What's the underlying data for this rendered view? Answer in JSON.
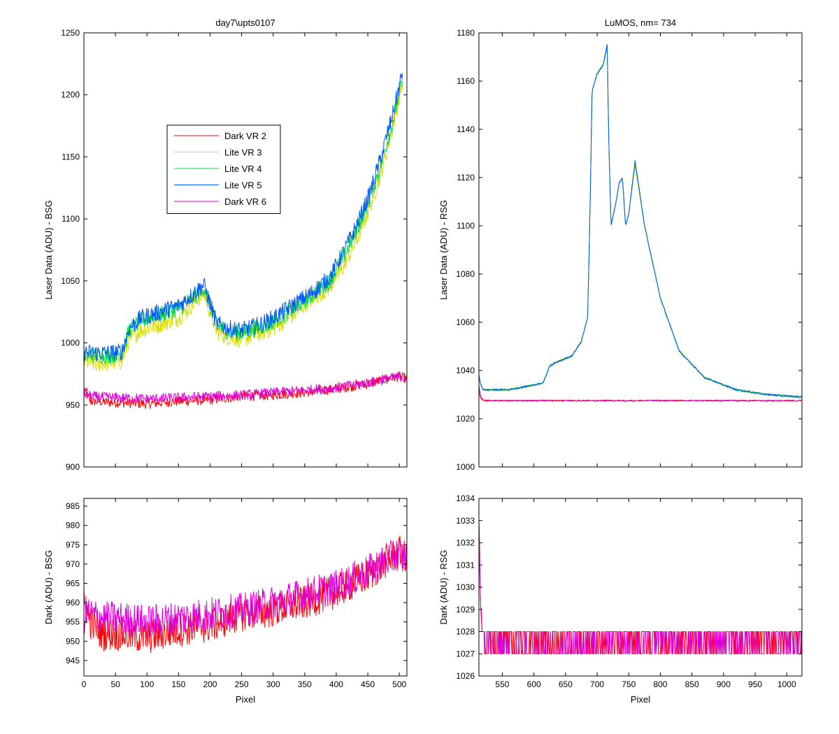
{
  "chart_data": [
    {
      "id": "tl",
      "type": "line",
      "title": "day7\\upts0107",
      "xlabel": "",
      "ylabel": "Laser Data (ADU) - BSG",
      "xlim": [
        0,
        512
      ],
      "ylim": [
        900,
        1250
      ],
      "xticks": [
        0,
        50,
        100,
        150,
        200,
        250,
        300,
        350,
        400,
        450,
        500
      ],
      "yticks": [
        900,
        950,
        1000,
        1050,
        1100,
        1150,
        1200,
        1250
      ],
      "show_xtick_labels": false,
      "legend": {
        "placement": "upper-left",
        "entries": [
          "Dark VR 2",
          "Lite VR 3",
          "Lite VR 4",
          "Lite VR 5",
          "Dark VR 6"
        ]
      },
      "series": [
        {
          "name": "Dark VR 2",
          "color": "#ff0000",
          "noise": 4,
          "x": [
            0,
            5,
            10,
            50,
            100,
            150,
            200,
            250,
            300,
            350,
            400,
            450,
            480,
            500,
            512
          ],
          "y": [
            962,
            958,
            953,
            952,
            951,
            953,
            954,
            957,
            958,
            960,
            963,
            967,
            971,
            973,
            971
          ]
        },
        {
          "name": "Lite VR 3",
          "color": "#dddd00",
          "noise": 7,
          "x": [
            0,
            20,
            40,
            60,
            72,
            90,
            120,
            150,
            170,
            190,
            200,
            210,
            225,
            250,
            280,
            300,
            330,
            360,
            390,
            410,
            430,
            450,
            470,
            490,
            505
          ],
          "y": [
            985,
            983,
            984,
            985,
            1003,
            1010,
            1015,
            1020,
            1030,
            1040,
            1025,
            1010,
            1005,
            1003,
            1008,
            1012,
            1022,
            1035,
            1045,
            1060,
            1080,
            1105,
            1135,
            1175,
            1210
          ]
        },
        {
          "name": "Lite VR 4",
          "color": "#00dd44",
          "noise": 7,
          "x": [
            0,
            20,
            40,
            60,
            72,
            90,
            120,
            150,
            170,
            190,
            200,
            210,
            225,
            250,
            280,
            300,
            330,
            360,
            390,
            410,
            430,
            450,
            470,
            490,
            505
          ],
          "y": [
            990,
            990,
            990,
            992,
            1010,
            1018,
            1023,
            1028,
            1035,
            1045,
            1030,
            1015,
            1010,
            1008,
            1013,
            1017,
            1027,
            1038,
            1050,
            1068,
            1088,
            1112,
            1142,
            1180,
            1212
          ]
        },
        {
          "name": "Lite VR 5",
          "color": "#0055ff",
          "noise": 7,
          "x": [
            0,
            20,
            40,
            60,
            72,
            90,
            120,
            150,
            170,
            190,
            200,
            210,
            225,
            250,
            280,
            300,
            330,
            360,
            390,
            410,
            430,
            450,
            470,
            490,
            505
          ],
          "y": [
            992,
            992,
            992,
            993,
            1012,
            1020,
            1025,
            1030,
            1038,
            1047,
            1032,
            1016,
            1012,
            1010,
            1015,
            1020,
            1030,
            1040,
            1053,
            1072,
            1092,
            1116,
            1148,
            1185,
            1218
          ]
        },
        {
          "name": "Dark VR 6",
          "color": "#dd00dd",
          "noise": 4,
          "x": [
            0,
            5,
            10,
            50,
            100,
            150,
            200,
            250,
            300,
            350,
            400,
            450,
            480,
            500,
            512
          ],
          "y": [
            958,
            960,
            957,
            956,
            955,
            956,
            957,
            958,
            960,
            962,
            964,
            968,
            971,
            973,
            971
          ]
        }
      ]
    },
    {
      "id": "bl",
      "type": "line",
      "title": "",
      "xlabel": "Pixel",
      "ylabel": "Dark (ADU) - BSG",
      "xlim": [
        0,
        512
      ],
      "ylim": [
        941,
        987
      ],
      "xticks": [
        0,
        50,
        100,
        150,
        200,
        250,
        300,
        350,
        400,
        450,
        500
      ],
      "yticks": [
        945,
        950,
        955,
        960,
        965,
        970,
        975,
        980,
        985
      ],
      "show_xtick_labels": true,
      "series": [
        {
          "name": "Dark VR 2",
          "color": "#ff0000",
          "noise": 4.5,
          "x": [
            0,
            5,
            10,
            30,
            50,
            100,
            150,
            200,
            250,
            300,
            350,
            400,
            450,
            480,
            500,
            512
          ],
          "y": [
            960,
            958,
            955,
            952,
            952,
            951,
            953,
            954,
            957,
            958,
            960,
            963,
            967,
            971,
            973,
            971
          ]
        },
        {
          "name": "Dark VR 6",
          "color": "#dd00dd",
          "noise": 4.5,
          "x": [
            0,
            5,
            10,
            30,
            50,
            100,
            150,
            200,
            250,
            300,
            350,
            400,
            450,
            480,
            500,
            512
          ],
          "y": [
            956,
            958,
            957,
            956,
            956,
            955,
            956,
            957,
            958,
            960,
            962,
            964,
            968,
            971,
            973,
            971
          ]
        }
      ]
    },
    {
      "id": "tr",
      "type": "line",
      "title": "LuMOS, nm= 734",
      "xlabel": "",
      "ylabel": "Laser Data (ADU) - RSG",
      "xlim": [
        513,
        1024
      ],
      "ylim": [
        1000,
        1180
      ],
      "xticks": [
        550,
        600,
        650,
        700,
        750,
        800,
        850,
        900,
        950,
        1000
      ],
      "yticks": [
        1000,
        1020,
        1040,
        1060,
        1080,
        1100,
        1120,
        1140,
        1160,
        1180
      ],
      "show_xtick_labels": false,
      "series": [
        {
          "name": "Lite VR 3",
          "color": "#dddd00",
          "noise": 0.4,
          "x": [
            513,
            516,
            520,
            560,
            600,
            615,
            625,
            640,
            660,
            675,
            685,
            689,
            692,
            700,
            710,
            716,
            718,
            722,
            730,
            735,
            740,
            745,
            750,
            760,
            775,
            800,
            830,
            870,
            920,
            970,
            1024
          ],
          "y": [
            1038,
            1034,
            1032,
            1032,
            1034,
            1035,
            1042,
            1044,
            1046,
            1052,
            1062,
            1110,
            1156,
            1163,
            1167,
            1174,
            1140,
            1100,
            1110,
            1118,
            1120,
            1100,
            1105,
            1125,
            1100,
            1070,
            1048,
            1037,
            1032,
            1030,
            1029
          ]
        },
        {
          "name": "Lite VR 4",
          "color": "#00dd44",
          "noise": 0.4,
          "x": [
            513,
            516,
            520,
            560,
            600,
            615,
            625,
            640,
            660,
            675,
            685,
            689,
            692,
            700,
            710,
            716,
            718,
            722,
            730,
            735,
            740,
            745,
            750,
            760,
            775,
            800,
            830,
            870,
            920,
            970,
            1024
          ],
          "y": [
            1038,
            1034,
            1032,
            1032,
            1034,
            1035,
            1042,
            1044,
            1046,
            1052,
            1062,
            1110,
            1156,
            1163,
            1167,
            1175,
            1140,
            1100,
            1110,
            1118,
            1120,
            1100,
            1105,
            1126,
            1100,
            1070,
            1048,
            1037,
            1032,
            1030,
            1029
          ]
        },
        {
          "name": "Lite VR 5",
          "color": "#0055ff",
          "noise": 0.4,
          "x": [
            513,
            516,
            520,
            560,
            600,
            615,
            625,
            640,
            660,
            675,
            685,
            689,
            692,
            700,
            710,
            716,
            718,
            722,
            730,
            735,
            740,
            745,
            750,
            760,
            775,
            800,
            830,
            870,
            920,
            970,
            1024
          ],
          "y": [
            1038,
            1034,
            1032,
            1032,
            1034,
            1035,
            1042,
            1044,
            1046,
            1052,
            1062,
            1110,
            1156,
            1163,
            1167,
            1176,
            1140,
            1100,
            1110,
            1118,
            1120,
            1100,
            1105,
            1127,
            1100,
            1070,
            1048,
            1037,
            1032,
            1030,
            1029
          ]
        },
        {
          "name": "Dark VR 2",
          "color": "#ff0000",
          "noise": 0.3,
          "x": [
            513,
            515,
            518,
            522,
            530,
            1024
          ],
          "y": [
            1034,
            1029,
            1028,
            1027.5,
            1027.5,
            1027.5
          ]
        },
        {
          "name": "Dark VR 6",
          "color": "#dd00dd",
          "noise": 0.3,
          "x": [
            513,
            515,
            518,
            522,
            530,
            1024
          ],
          "y": [
            1034,
            1030,
            1028,
            1027.5,
            1027.5,
            1027.5
          ]
        }
      ]
    },
    {
      "id": "br",
      "type": "line",
      "title": "",
      "xlabel": "Pixel",
      "ylabel": "Dark (ADU) - RSG",
      "xlim": [
        513,
        1024
      ],
      "ylim": [
        1026,
        1034
      ],
      "xticks": [
        550,
        600,
        650,
        700,
        750,
        800,
        850,
        900,
        950,
        1000
      ],
      "yticks": [
        1026,
        1027,
        1028,
        1029,
        1030,
        1031,
        1032,
        1033,
        1034
      ],
      "show_xtick_labels": true,
      "quantized": true,
      "series": [
        {
          "name": "Dark VR 2",
          "color": "#ff0000",
          "x": [
            513,
            514,
            515,
            516,
            517,
            518,
            519
          ],
          "y": [
            1033,
            1031,
            1030,
            1029,
            1028.5,
            1028,
            1028
          ]
        },
        {
          "name": "Dark VR 6",
          "color": "#dd00dd",
          "x": [
            513,
            514,
            515,
            516,
            517,
            518,
            519
          ],
          "y": [
            1033,
            1032,
            1030,
            1029,
            1029,
            1028,
            1028
          ]
        }
      ]
    }
  ]
}
